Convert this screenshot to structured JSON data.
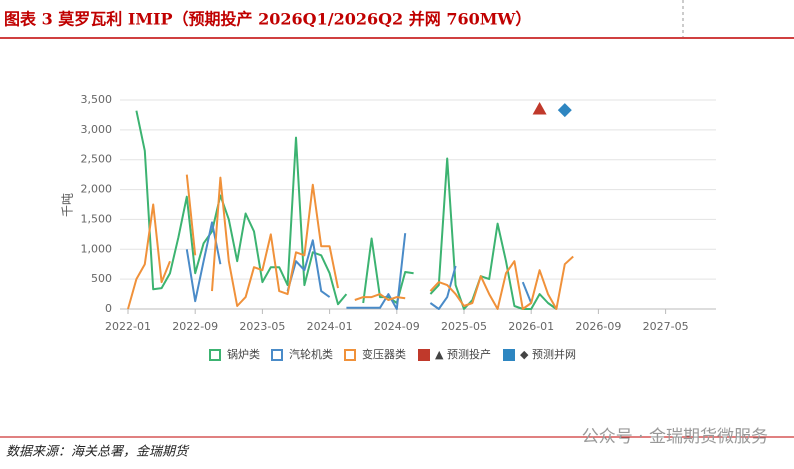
{
  "chart_data": {
    "type": "line",
    "title": "图表 3 莫罗瓦利 IMIP（预期投产 2026Q1/2026Q2 并网 760MW）",
    "y_label": "千吨",
    "source": "数据来源：海关总署，金瑞期货",
    "watermark": "公众号 · 金瑞期货微服务",
    "x": [
      "2022-01",
      "2022-02",
      "2022-03",
      "2022-04",
      "2022-05",
      "2022-06",
      "2022-07",
      "2022-08",
      "2022-09",
      "2022-10",
      "2022-11",
      "2022-12",
      "2023-01",
      "2023-02",
      "2023-03",
      "2023-04",
      "2023-05",
      "2023-06",
      "2023-07",
      "2023-08",
      "2023-09",
      "2023-10",
      "2023-11",
      "2023-12",
      "2024-01",
      "2024-02",
      "2024-03",
      "2024-04",
      "2024-05",
      "2024-06",
      "2024-07",
      "2024-08",
      "2024-09",
      "2024-10",
      "2024-11",
      "2024-12",
      "2025-01",
      "2025-02",
      "2025-03",
      "2025-04",
      "2025-05",
      "2025-06",
      "2025-07",
      "2025-08",
      "2025-09",
      "2025-10",
      "2025-11",
      "2025-12",
      "2026-01",
      "2026-02",
      "2026-03",
      "2026-04",
      "2026-05",
      "2026-06"
    ],
    "xlim": [
      "2022-01",
      "2027-11"
    ],
    "xticks": [
      "2022-01",
      "2022-09",
      "2023-05",
      "2024-01",
      "2024-09",
      "2025-05",
      "2026-01",
      "2026-09",
      "2027-05"
    ],
    "ylim": [
      0,
      3500
    ],
    "yticks": [
      0,
      500,
      {
        "value": 1000,
        "label": "1,000"
      },
      {
        "value": 1500,
        "label": "1,500"
      },
      {
        "value": 2000,
        "label": "2,000"
      },
      {
        "value": 2500,
        "label": "2,500"
      },
      {
        "value": 3000,
        "label": "3,000"
      },
      {
        "value": 3500,
        "label": "3,500"
      }
    ],
    "grid": true,
    "series": [
      {
        "name": "锅炉类",
        "color": "#3cb371",
        "values": [
          null,
          3320,
          2650,
          330,
          350,
          600,
          1200,
          1880,
          600,
          1100,
          1300,
          1900,
          1500,
          800,
          1600,
          1300,
          450,
          700,
          700,
          400,
          2870,
          400,
          950,
          900,
          600,
          80,
          250,
          null,
          100,
          1180,
          200,
          200,
          100,
          620,
          600,
          null,
          250,
          400,
          2520,
          400,
          0,
          150,
          550,
          500,
          1430,
          800,
          50,
          0,
          0,
          250,
          100,
          0,
          null,
          null
        ]
      },
      {
        "name": "汽轮机类",
        "color": "#4a8bc8",
        "values": [
          null,
          null,
          null,
          null,
          null,
          null,
          null,
          1000,
          130,
          800,
          1450,
          750,
          null,
          null,
          null,
          null,
          null,
          null,
          null,
          300,
          800,
          650,
          1150,
          300,
          200,
          null,
          20,
          20,
          20,
          20,
          20,
          250,
          0,
          1270,
          null,
          null,
          100,
          0,
          200,
          720,
          null,
          null,
          null,
          null,
          null,
          null,
          null,
          450,
          100,
          null,
          null,
          null,
          null,
          null
        ]
      },
      {
        "name": "变压器类",
        "color": "#f0913a",
        "values": [
          0,
          500,
          750,
          1750,
          450,
          800,
          null,
          2250,
          900,
          null,
          300,
          2200,
          800,
          50,
          200,
          700,
          650,
          1250,
          300,
          250,
          950,
          900,
          2080,
          1050,
          1050,
          350,
          null,
          150,
          200,
          200,
          250,
          150,
          200,
          180,
          null,
          null,
          300,
          450,
          400,
          250,
          50,
          100,
          550,
          250,
          0,
          600,
          800,
          0,
          100,
          650,
          250,
          0,
          750,
          880
        ]
      },
      {
        "name": "▲ 预测投产",
        "type": "scatter",
        "marker": "triangle",
        "color": "#c0392b",
        "x": [
          "2026-02"
        ],
        "values": [
          3350
        ]
      },
      {
        "name": "◆ 预测并网",
        "type": "scatter",
        "marker": "diamond",
        "color": "#2e86c1",
        "x": [
          "2026-05"
        ],
        "values": [
          3330
        ]
      }
    ]
  }
}
